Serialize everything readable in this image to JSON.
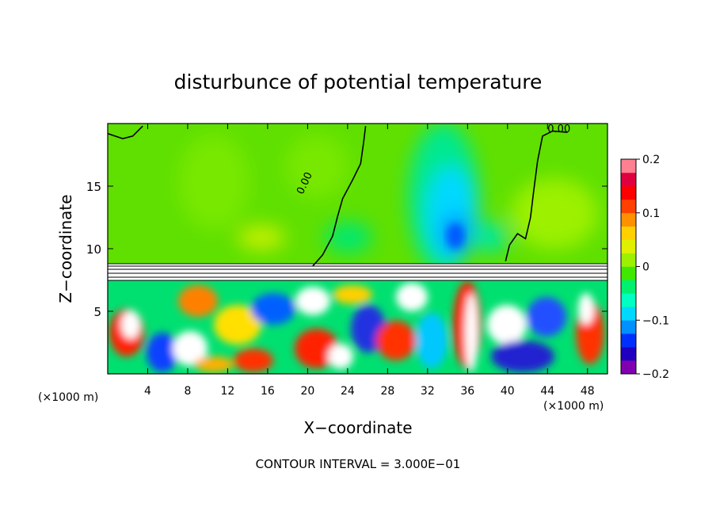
{
  "chart_data": {
    "type": "heatmap",
    "title": "disturbunce of potential temperature",
    "xlabel": "X−coordinate",
    "ylabel": "Z−coordinate",
    "x_unit_left": "(×1000 m)",
    "x_unit_right": "(×1000 m)",
    "x_ticks": [
      4,
      8,
      12,
      16,
      20,
      24,
      28,
      32,
      36,
      40,
      44,
      48
    ],
    "x_tick_labels": [
      "4",
      "8",
      "12",
      "16",
      "20",
      "24",
      "28",
      "32",
      "36",
      "40",
      "44",
      "48"
    ],
    "y_ticks": [
      5,
      10,
      15
    ],
    "y_tick_labels": [
      "5",
      "10",
      "15"
    ],
    "xlim": [
      0,
      50
    ],
    "ylim": [
      0,
      20
    ],
    "colorbar": {
      "ticks": [
        -0.2,
        -0.1,
        0,
        0.1,
        0.2
      ],
      "tick_labels": [
        "−0.2",
        "−0.1",
        "0",
        "0.1",
        "0.2"
      ],
      "range": [
        -0.2,
        0.2
      ],
      "colors": [
        "#8000b0",
        "#2000c0",
        "#0030ff",
        "#0090ff",
        "#00d8ff",
        "#00ffc0",
        "#00f070",
        "#40e800",
        "#9cf000",
        "#e0f000",
        "#ffd000",
        "#ff9000",
        "#ff4000",
        "#ff0000",
        "#e00040",
        "#ff8090"
      ]
    },
    "contour_labels": [
      {
        "text": "0.00",
        "x": 44,
        "y": 19.3
      },
      {
        "text": "0.00",
        "x": 19.5,
        "y": 14.3
      }
    ],
    "zero_contour_1": [
      [
        20.5,
        8.6
      ],
      [
        21.5,
        9.5
      ],
      [
        22.5,
        11.0
      ],
      [
        23.0,
        12.6
      ],
      [
        23.5,
        14.0
      ],
      [
        24.5,
        15.5
      ],
      [
        25.3,
        16.8
      ],
      [
        25.6,
        18.5
      ],
      [
        25.8,
        19.8
      ]
    ],
    "zero_contour_2": [
      [
        39.8,
        9.0
      ],
      [
        40.2,
        10.3
      ],
      [
        41.0,
        11.2
      ],
      [
        41.8,
        10.8
      ],
      [
        42.3,
        12.5
      ],
      [
        42.6,
        14.5
      ],
      [
        43.0,
        17.0
      ],
      [
        43.5,
        19.0
      ],
      [
        44.5,
        19.4
      ],
      [
        46.0,
        19.3
      ]
    ],
    "zero_contour_3": [
      [
        0,
        19.2
      ],
      [
        1.5,
        18.8
      ],
      [
        2.5,
        19.0
      ],
      [
        3.5,
        19.8
      ]
    ],
    "boundary_layer": [
      9.0,
      7.5
    ],
    "annotation": "CONTOUR INTERVAL = 3.000E−01"
  }
}
